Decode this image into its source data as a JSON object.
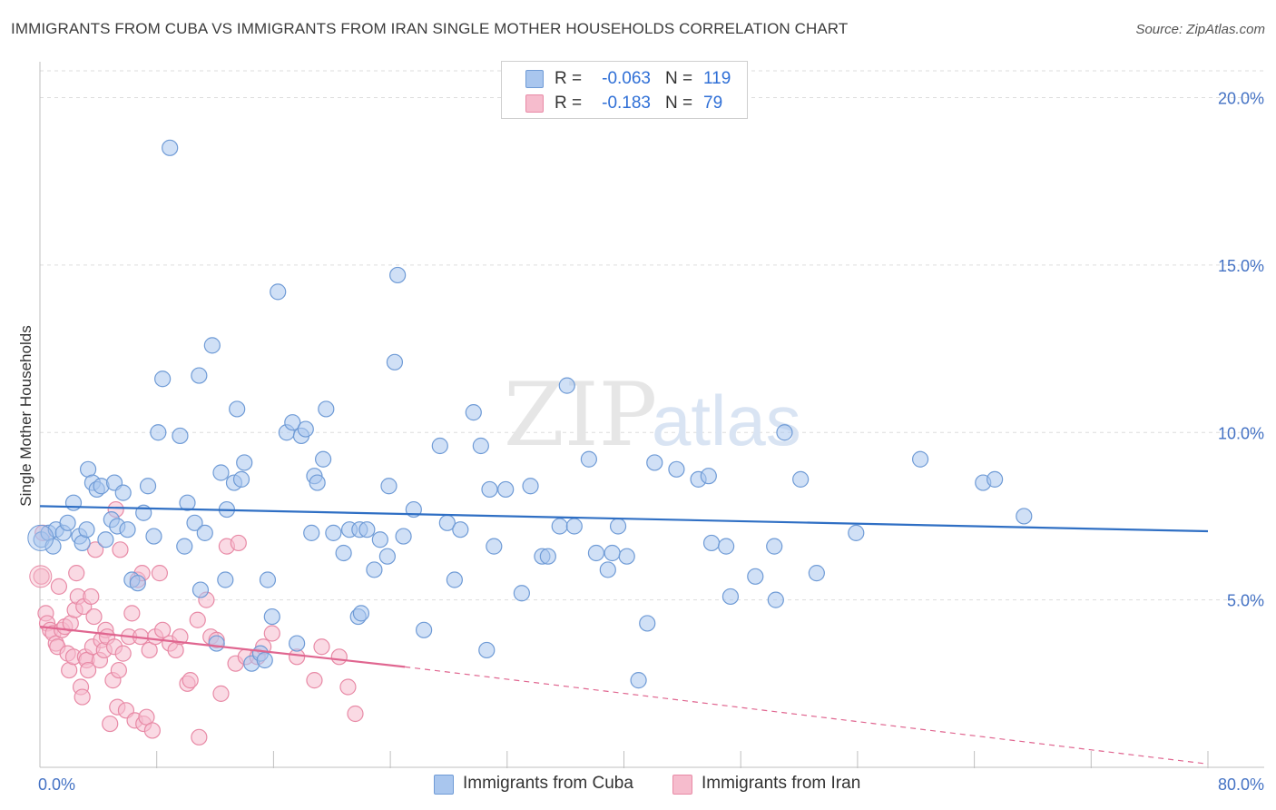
{
  "title": "IMMIGRANTS FROM CUBA VS IMMIGRANTS FROM IRAN SINGLE MOTHER HOUSEHOLDS CORRELATION CHART",
  "source": "Source: ZipAtlas.com",
  "watermark": {
    "part1": "ZIP",
    "part2": "atlas"
  },
  "legend": {
    "rows": [
      {
        "r_label": "R =",
        "r_value": "-0.063",
        "n_label": "N =",
        "n_value": "119"
      },
      {
        "r_label": "R =",
        "r_value": "-0.183",
        "n_label": "N =",
        "n_value": "79"
      }
    ]
  },
  "bottom_legend": {
    "cuba": "Immigrants from Cuba",
    "iran": "Immigrants from Iran"
  },
  "colors": {
    "cuba_fill": "#a9c6ee",
    "cuba_stroke": "#6f9bd6",
    "cuba_line": "#2f6fc4",
    "iran_fill": "#f6bccd",
    "iran_stroke": "#e88aa6",
    "iran_line": "#e06690",
    "tick_text": "#4472c4",
    "grid": "#dddddd"
  },
  "chart_data": {
    "type": "scatter",
    "title": "IMMIGRANTS FROM CUBA VS IMMIGRANTS FROM IRAN SINGLE MOTHER HOUSEHOLDS CORRELATION CHART",
    "xlabel": "",
    "ylabel": "Single Mother Households",
    "xlim": [
      0,
      80
    ],
    "ylim": [
      0,
      20.8
    ],
    "x_tick_labels": {
      "min": "0.0%",
      "max": "80.0%"
    },
    "y_ticks": [
      {
        "value": 5,
        "label": "5.0%"
      },
      {
        "value": 10,
        "label": "10.0%"
      },
      {
        "value": 15,
        "label": "15.0%"
      },
      {
        "value": 20,
        "label": "20.0%"
      }
    ],
    "series": [
      {
        "name": "Immigrants from Cuba",
        "R": -0.063,
        "N": 119,
        "trend": {
          "x": [
            0,
            80
          ],
          "y": [
            7.8,
            7.05
          ],
          "dashed_from": null
        },
        "points": [
          [
            0.1,
            6.8
          ],
          [
            0.6,
            7.0
          ],
          [
            0.9,
            6.6
          ],
          [
            1.1,
            7.1
          ],
          [
            1.6,
            7.0
          ],
          [
            1.9,
            7.3
          ],
          [
            2.3,
            7.9
          ],
          [
            2.7,
            6.9
          ],
          [
            2.9,
            6.7
          ],
          [
            3.3,
            8.9
          ],
          [
            3.6,
            8.5
          ],
          [
            3.9,
            8.3
          ],
          [
            4.2,
            8.4
          ],
          [
            4.5,
            6.8
          ],
          [
            4.9,
            7.4
          ],
          [
            5.1,
            8.5
          ],
          [
            5.3,
            7.2
          ],
          [
            5.7,
            8.2
          ],
          [
            6.0,
            7.1
          ],
          [
            6.3,
            5.6
          ],
          [
            6.7,
            5.5
          ],
          [
            7.1,
            7.6
          ],
          [
            7.4,
            8.4
          ],
          [
            7.8,
            6.9
          ],
          [
            8.1,
            10.0
          ],
          [
            8.4,
            11.6
          ],
          [
            8.9,
            18.5
          ],
          [
            9.6,
            9.9
          ],
          [
            9.9,
            6.6
          ],
          [
            10.1,
            7.9
          ],
          [
            10.6,
            7.3
          ],
          [
            10.9,
            11.7
          ],
          [
            11.0,
            5.3
          ],
          [
            11.3,
            7.0
          ],
          [
            11.8,
            12.6
          ],
          [
            12.1,
            3.7
          ],
          [
            12.4,
            8.8
          ],
          [
            12.7,
            5.6
          ],
          [
            12.8,
            7.7
          ],
          [
            13.3,
            8.5
          ],
          [
            13.5,
            10.7
          ],
          [
            13.8,
            8.6
          ],
          [
            14.0,
            9.1
          ],
          [
            14.5,
            3.1
          ],
          [
            15.1,
            3.4
          ],
          [
            15.4,
            3.2
          ],
          [
            15.6,
            5.6
          ],
          [
            15.9,
            4.5
          ],
          [
            16.3,
            14.2
          ],
          [
            16.9,
            10.0
          ],
          [
            17.3,
            10.3
          ],
          [
            17.6,
            3.7
          ],
          [
            17.9,
            9.9
          ],
          [
            18.2,
            10.1
          ],
          [
            18.6,
            7.0
          ],
          [
            18.8,
            8.7
          ],
          [
            19.0,
            8.5
          ],
          [
            19.4,
            9.2
          ],
          [
            19.6,
            10.7
          ],
          [
            20.1,
            7.0
          ],
          [
            20.8,
            6.4
          ],
          [
            21.2,
            7.1
          ],
          [
            21.9,
            7.1
          ],
          [
            21.8,
            4.5
          ],
          [
            22.4,
            7.1
          ],
          [
            22.9,
            5.9
          ],
          [
            23.3,
            6.8
          ],
          [
            23.8,
            6.3
          ],
          [
            23.9,
            8.4
          ],
          [
            24.3,
            12.1
          ],
          [
            24.5,
            14.7
          ],
          [
            24.9,
            6.9
          ],
          [
            25.6,
            7.7
          ],
          [
            26.3,
            4.1
          ],
          [
            27.4,
            9.6
          ],
          [
            27.9,
            7.3
          ],
          [
            28.4,
            5.6
          ],
          [
            28.8,
            7.1
          ],
          [
            29.7,
            10.6
          ],
          [
            30.2,
            9.6
          ],
          [
            30.6,
            3.5
          ],
          [
            30.8,
            8.3
          ],
          [
            31.1,
            6.6
          ],
          [
            31.9,
            8.3
          ],
          [
            33.0,
            5.2
          ],
          [
            33.6,
            8.4
          ],
          [
            34.4,
            6.3
          ],
          [
            34.8,
            6.3
          ],
          [
            35.6,
            7.2
          ],
          [
            36.1,
            11.4
          ],
          [
            36.6,
            7.2
          ],
          [
            37.6,
            9.2
          ],
          [
            38.1,
            6.4
          ],
          [
            38.9,
            5.9
          ],
          [
            39.2,
            6.4
          ],
          [
            39.6,
            7.2
          ],
          [
            40.2,
            6.3
          ],
          [
            41.0,
            2.6
          ],
          [
            41.6,
            4.3
          ],
          [
            42.1,
            9.1
          ],
          [
            43.6,
            8.9
          ],
          [
            45.1,
            8.6
          ],
          [
            45.8,
            8.7
          ],
          [
            46.0,
            6.7
          ],
          [
            47.0,
            6.6
          ],
          [
            47.3,
            5.1
          ],
          [
            49.0,
            5.7
          ],
          [
            50.3,
            6.6
          ],
          [
            50.4,
            5.0
          ],
          [
            51.0,
            10.0
          ],
          [
            52.1,
            8.6
          ],
          [
            53.2,
            5.8
          ],
          [
            55.9,
            7.0
          ],
          [
            60.3,
            9.2
          ],
          [
            64.6,
            8.5
          ],
          [
            65.4,
            8.6
          ],
          [
            67.4,
            7.5
          ],
          [
            3.2,
            7.1
          ],
          [
            22.0,
            4.6
          ]
        ]
      },
      {
        "name": "Immigrants from Iran",
        "R": -0.183,
        "N": 79,
        "trend": {
          "x": [
            0,
            25,
            80
          ],
          "y": [
            4.2,
            3.0,
            0.1
          ],
          "dashed_from": 25
        },
        "points": [
          [
            0.1,
            5.7
          ],
          [
            0.2,
            7.0
          ],
          [
            0.4,
            4.6
          ],
          [
            0.5,
            4.3
          ],
          [
            0.7,
            4.1
          ],
          [
            0.9,
            4.0
          ],
          [
            1.1,
            3.7
          ],
          [
            1.2,
            3.6
          ],
          [
            1.3,
            5.4
          ],
          [
            1.5,
            4.1
          ],
          [
            1.7,
            4.2
          ],
          [
            1.9,
            3.4
          ],
          [
            2.0,
            2.9
          ],
          [
            2.1,
            4.3
          ],
          [
            2.3,
            3.3
          ],
          [
            2.4,
            4.7
          ],
          [
            2.5,
            5.8
          ],
          [
            2.6,
            5.1
          ],
          [
            2.8,
            2.4
          ],
          [
            2.9,
            2.1
          ],
          [
            3.0,
            4.8
          ],
          [
            3.1,
            3.3
          ],
          [
            3.2,
            3.2
          ],
          [
            3.3,
            2.9
          ],
          [
            3.5,
            5.1
          ],
          [
            3.6,
            3.6
          ],
          [
            3.7,
            4.5
          ],
          [
            3.8,
            6.5
          ],
          [
            4.1,
            3.2
          ],
          [
            4.2,
            3.8
          ],
          [
            4.4,
            3.5
          ],
          [
            4.5,
            4.1
          ],
          [
            4.6,
            3.9
          ],
          [
            4.8,
            1.3
          ],
          [
            5.0,
            2.6
          ],
          [
            5.1,
            3.6
          ],
          [
            5.2,
            7.7
          ],
          [
            5.3,
            1.8
          ],
          [
            5.4,
            2.9
          ],
          [
            5.5,
            6.5
          ],
          [
            5.7,
            3.4
          ],
          [
            5.9,
            1.7
          ],
          [
            6.1,
            3.9
          ],
          [
            6.3,
            4.6
          ],
          [
            6.5,
            1.4
          ],
          [
            6.7,
            5.6
          ],
          [
            6.9,
            3.9
          ],
          [
            7.0,
            5.8
          ],
          [
            7.1,
            1.3
          ],
          [
            7.3,
            1.5
          ],
          [
            7.5,
            3.5
          ],
          [
            7.7,
            1.1
          ],
          [
            7.9,
            3.9
          ],
          [
            8.2,
            5.8
          ],
          [
            8.4,
            4.1
          ],
          [
            8.9,
            3.7
          ],
          [
            9.3,
            3.5
          ],
          [
            9.6,
            3.9
          ],
          [
            10.1,
            2.5
          ],
          [
            10.3,
            2.6
          ],
          [
            10.8,
            4.4
          ],
          [
            10.9,
            0.9
          ],
          [
            11.4,
            5.0
          ],
          [
            11.7,
            3.9
          ],
          [
            12.1,
            3.8
          ],
          [
            12.4,
            2.2
          ],
          [
            12.8,
            6.6
          ],
          [
            13.4,
            3.1
          ],
          [
            13.6,
            6.7
          ],
          [
            14.1,
            3.3
          ],
          [
            14.9,
            3.3
          ],
          [
            15.3,
            3.6
          ],
          [
            15.9,
            4.0
          ],
          [
            17.6,
            3.3
          ],
          [
            18.8,
            2.6
          ],
          [
            19.3,
            3.6
          ],
          [
            20.5,
            3.3
          ],
          [
            21.1,
            2.4
          ],
          [
            21.6,
            1.6
          ]
        ]
      }
    ]
  }
}
